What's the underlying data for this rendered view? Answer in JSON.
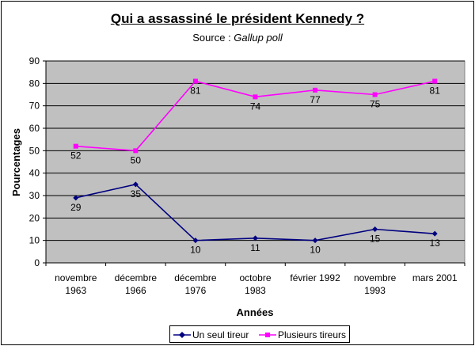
{
  "title": "Qui a assassiné le président Kennedy ?",
  "subtitle_prefix": "Source : ",
  "subtitle_source": "Gallup poll",
  "chart_data": {
    "type": "line",
    "xlabel": "Années",
    "ylabel": "Pourcentages",
    "ylim": [
      0,
      90
    ],
    "yticks": [
      0,
      10,
      20,
      30,
      40,
      50,
      60,
      70,
      80,
      90
    ],
    "grid": true,
    "legend_position": "bottom",
    "categories": [
      [
        "novembre",
        "1963"
      ],
      [
        "décembre",
        "1966"
      ],
      [
        "décembre",
        "1976"
      ],
      [
        "octobre",
        "1983"
      ],
      [
        "février 1992"
      ],
      [
        "novembre",
        "1993"
      ],
      [
        "mars 2001"
      ]
    ],
    "series": [
      {
        "name": "Un seul tireur",
        "color": "#000080",
        "marker": "diamond",
        "values": [
          29,
          35,
          10,
          11,
          10,
          15,
          13
        ],
        "data_labels": [
          "29",
          "35",
          "10",
          "11",
          "10",
          "15",
          "13"
        ]
      },
      {
        "name": "Plusieurs tireurs",
        "color": "#ff00ff",
        "marker": "square",
        "values": [
          52,
          50,
          81,
          74,
          77,
          75,
          81
        ],
        "data_labels": [
          "52",
          "50",
          "81",
          "74",
          "77",
          "75",
          "81"
        ]
      }
    ],
    "plot_background": "#c0c0c0"
  }
}
